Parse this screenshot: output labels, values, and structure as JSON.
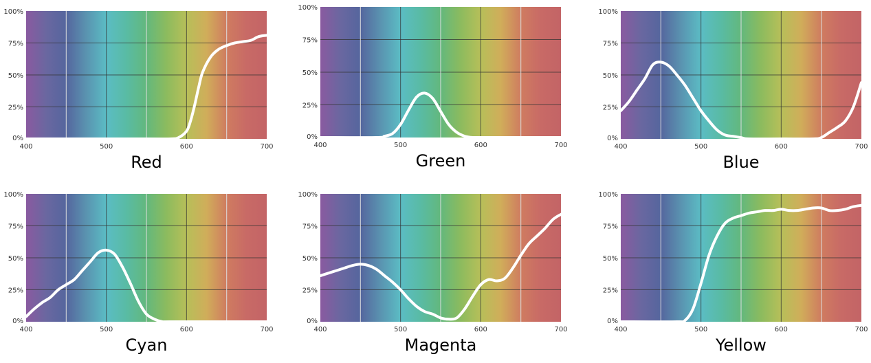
{
  "palette": {
    "spectrum_stops": [
      "#8a5aa0",
      "#6a67a0",
      "#55669e",
      "#5a93b0",
      "#5bbcc4",
      "#59bba4",
      "#63b87d",
      "#8cbb5e",
      "#b7bf59",
      "#d0ad5a",
      "#cf7c60",
      "#c86a66",
      "#c36466"
    ],
    "grid_dark": "#333333",
    "grid_light": "#dddddd",
    "curve": "#ffffff"
  },
  "chart_data": [
    {
      "type": "line",
      "caption": "Red",
      "xlim": [
        400,
        700
      ],
      "ylim": [
        0,
        100
      ],
      "x_ticks": [
        "400",
        "500",
        "600",
        "700"
      ],
      "y_ticks": [
        "0%",
        "25%",
        "50%",
        "75%",
        "100%"
      ],
      "grid": true,
      "x": [
        400,
        550,
        580,
        590,
        600,
        605,
        610,
        615,
        620,
        630,
        640,
        650,
        660,
        670,
        680,
        690,
        700
      ],
      "y": [
        0,
        0,
        0,
        1,
        6,
        14,
        26,
        40,
        52,
        64,
        70,
        73,
        75,
        76,
        77,
        80,
        81
      ]
    },
    {
      "type": "line",
      "caption": "Green",
      "xlim": [
        400,
        700
      ],
      "ylim": [
        0,
        100
      ],
      "x_ticks": [
        "400",
        "500",
        "600",
        "700"
      ],
      "y_ticks": [
        "0%",
        "25%",
        "50%",
        "75%",
        "100%"
      ],
      "grid": true,
      "x": [
        400,
        470,
        480,
        490,
        500,
        510,
        520,
        530,
        540,
        550,
        560,
        570,
        580,
        590,
        600,
        700
      ],
      "y": [
        0,
        0,
        1,
        3,
        10,
        21,
        31,
        34,
        30,
        20,
        10,
        4,
        1,
        0,
        0,
        0
      ]
    },
    {
      "type": "line",
      "caption": "Blue",
      "xlim": [
        400,
        700
      ],
      "ylim": [
        0,
        100
      ],
      "x_ticks": [
        "400",
        "500",
        "600",
        "700"
      ],
      "y_ticks": [
        "0%",
        "25%",
        "50%",
        "75%",
        "100%"
      ],
      "grid": true,
      "x": [
        400,
        410,
        420,
        430,
        440,
        450,
        460,
        470,
        480,
        490,
        500,
        510,
        520,
        530,
        540,
        550,
        560,
        600,
        640,
        650,
        660,
        670,
        680,
        690,
        700
      ],
      "y": [
        22,
        29,
        38,
        47,
        58,
        60,
        57,
        50,
        42,
        32,
        22,
        14,
        7,
        3,
        2,
        1,
        0,
        0,
        0,
        1,
        5,
        9,
        14,
        25,
        44
      ]
    },
    {
      "type": "line",
      "caption": "Cyan",
      "xlim": [
        400,
        700
      ],
      "ylim": [
        0,
        100
      ],
      "x_ticks": [
        "400",
        "500",
        "600",
        "700"
      ],
      "y_ticks": [
        "0%",
        "25%",
        "50%",
        "75%",
        "100%"
      ],
      "grid": true,
      "x": [
        400,
        410,
        420,
        430,
        440,
        450,
        460,
        470,
        480,
        490,
        500,
        510,
        520,
        530,
        540,
        550,
        560,
        570,
        580,
        700
      ],
      "y": [
        4,
        10,
        15,
        19,
        25,
        29,
        33,
        40,
        47,
        54,
        56,
        53,
        43,
        30,
        16,
        6,
        2,
        0,
        0,
        0
      ]
    },
    {
      "type": "line",
      "caption": "Magenta",
      "xlim": [
        400,
        700
      ],
      "ylim": [
        0,
        100
      ],
      "x_ticks": [
        "400",
        "500",
        "600",
        "700"
      ],
      "y_ticks": [
        "0%",
        "25%",
        "50%",
        "75%",
        "100%"
      ],
      "grid": true,
      "x": [
        400,
        410,
        420,
        430,
        440,
        450,
        460,
        470,
        480,
        490,
        500,
        510,
        520,
        530,
        540,
        550,
        560,
        570,
        580,
        590,
        600,
        610,
        620,
        630,
        640,
        650,
        660,
        670,
        680,
        690,
        700
      ],
      "y": [
        36,
        38,
        40,
        42,
        44,
        45,
        44,
        41,
        36,
        31,
        25,
        18,
        12,
        8,
        6,
        3,
        2,
        3,
        10,
        20,
        29,
        33,
        32,
        34,
        42,
        52,
        61,
        67,
        73,
        80,
        84
      ]
    },
    {
      "type": "line",
      "caption": "Yellow",
      "xlim": [
        400,
        700
      ],
      "ylim": [
        0,
        100
      ],
      "x_ticks": [
        "400",
        "500",
        "600",
        "700"
      ],
      "y_ticks": [
        "0%",
        "25%",
        "50%",
        "75%",
        "100%"
      ],
      "grid": true,
      "x": [
        400,
        470,
        480,
        490,
        500,
        510,
        520,
        530,
        540,
        550,
        560,
        570,
        580,
        590,
        600,
        610,
        620,
        630,
        640,
        650,
        660,
        670,
        680,
        690,
        700
      ],
      "y": [
        0,
        0,
        1,
        10,
        30,
        52,
        67,
        77,
        81,
        83,
        85,
        86,
        87,
        87,
        88,
        87,
        87,
        88,
        89,
        89,
        87,
        87,
        88,
        90,
        91
      ]
    }
  ]
}
